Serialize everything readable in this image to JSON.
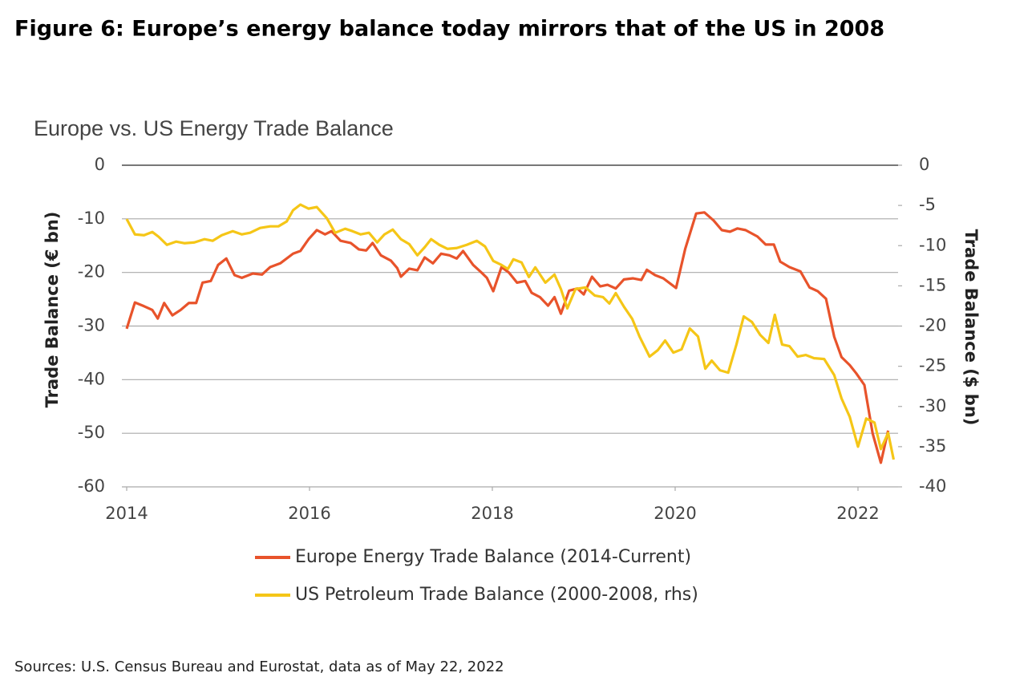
{
  "title": "Figure 6: Europe’s energy balance today mirrors that of the US in 2008",
  "source": "Sources: U.S. Census Bureau and Eurostat, data as of May 22, 2022",
  "chart_data": {
    "type": "line",
    "subtitle": "Europe vs. US Energy Trade Balance",
    "ylabel": "Trade Balance (€ bn)",
    "y2label": "Trade Balance ($ bn)",
    "xlim": [
      2014,
      2022.5
    ],
    "xticks": [
      2014,
      2016,
      2018,
      2020,
      2022
    ],
    "ylim": [
      -60,
      0
    ],
    "yticks": [
      0,
      -10,
      -20,
      -30,
      -40,
      -50,
      -60
    ],
    "y2lim": [
      -40,
      0
    ],
    "y2ticks": [
      0,
      -5,
      -10,
      -15,
      -20,
      -25,
      -30,
      -35,
      -40
    ],
    "grid": true,
    "series": [
      {
        "name": "Europe Energy Trade Balance (2014-Current)",
        "color": "#e8532b",
        "x": [
          2014.0,
          2014.09,
          2014.19,
          2014.28,
          2014.34,
          2014.41,
          2014.5,
          2014.59,
          2014.68,
          2014.76,
          2014.83,
          2014.92,
          2015.0,
          2015.09,
          2015.18,
          2015.26,
          2015.38,
          2015.48,
          2015.57,
          2015.68,
          2015.82,
          2015.9,
          2015.99,
          2016.08,
          2016.17,
          2016.24,
          2016.34,
          2016.45,
          2016.54,
          2016.62,
          2016.69,
          2016.78,
          2016.89,
          2016.96,
          2017.0,
          2017.09,
          2017.18,
          2017.26,
          2017.35,
          2017.44,
          2017.53,
          2017.61,
          2017.68,
          2017.79,
          2017.88,
          2017.94,
          2018.01,
          2018.1,
          2018.18,
          2018.27,
          2018.36,
          2018.43,
          2018.52,
          2018.61,
          2018.68,
          2018.75,
          2018.84,
          2018.93,
          2019.0,
          2019.09,
          2019.18,
          2019.26,
          2019.35,
          2019.44,
          2019.54,
          2019.63,
          2019.69,
          2019.78,
          2019.87,
          2020.01,
          2020.11,
          2020.23,
          2020.32,
          2020.42,
          2020.51,
          2020.6,
          2020.68,
          2020.77,
          2020.9,
          2020.99,
          2021.08,
          2021.15,
          2021.25,
          2021.37,
          2021.47,
          2021.56,
          2021.65,
          2021.74,
          2021.82,
          2021.91,
          2021.98,
          2022.07,
          2022.16,
          2022.25,
          2022.33
        ],
        "values": [
          -30.5,
          -25.6,
          -26.3,
          -27,
          -28.6,
          -25.7,
          -28,
          -27,
          -25.7,
          -25.7,
          -21.9,
          -21.6,
          -18.6,
          -17.4,
          -20.5,
          -21,
          -20.2,
          -20.4,
          -19,
          -18.3,
          -16.5,
          -16,
          -13.8,
          -12.1,
          -12.9,
          -12.3,
          -14.1,
          -14.5,
          -15.7,
          -15.9,
          -14.5,
          -16.8,
          -17.8,
          -19.2,
          -20.8,
          -19.3,
          -19.6,
          -17.2,
          -18.3,
          -16.5,
          -16.8,
          -17.4,
          -16,
          -18.6,
          -20,
          -21,
          -23.5,
          -19,
          -20,
          -21.9,
          -21.6,
          -23.8,
          -24.6,
          -26.2,
          -24.6,
          -27.7,
          -23.4,
          -23,
          -24.1,
          -20.8,
          -22.6,
          -22.3,
          -23,
          -21.3,
          -21.1,
          -21.4,
          -19.5,
          -20.5,
          -21.1,
          -22.9,
          -15.6,
          -9,
          -8.8,
          -10.3,
          -12.1,
          -12.4,
          -11.8,
          -12.1,
          -13.3,
          -14.8,
          -14.8,
          -18,
          -19,
          -19.8,
          -22.8,
          -23.5,
          -24.9,
          -32,
          -35.8,
          -37.3,
          -38.8,
          -41,
          -50,
          -55.5,
          -49.5
        ]
      },
      {
        "name": "US Petroleum Trade Balance (2000-2008, rhs)",
        "color": "#f5c617",
        "axis": "y2",
        "x": [
          2014.0,
          2014.09,
          2014.19,
          2014.28,
          2014.35,
          2014.44,
          2014.54,
          2014.63,
          2014.74,
          2014.85,
          2014.94,
          2015.04,
          2015.16,
          2015.26,
          2015.35,
          2015.46,
          2015.57,
          2015.66,
          2015.75,
          2015.82,
          2015.9,
          2015.99,
          2016.08,
          2016.19,
          2016.28,
          2016.39,
          2016.47,
          2016.56,
          2016.65,
          2016.74,
          2016.82,
          2016.91,
          2017.0,
          2017.09,
          2017.18,
          2017.26,
          2017.33,
          2017.42,
          2017.51,
          2017.61,
          2017.72,
          2017.83,
          2017.92,
          2018.01,
          2018.1,
          2018.17,
          2018.23,
          2018.32,
          2018.4,
          2018.47,
          2018.58,
          2018.68,
          2018.75,
          2018.82,
          2018.91,
          2019.02,
          2019.12,
          2019.21,
          2019.28,
          2019.35,
          2019.44,
          2019.53,
          2019.61,
          2019.72,
          2019.81,
          2019.89,
          2019.98,
          2020.07,
          2020.16,
          2020.25,
          2020.33,
          2020.4,
          2020.49,
          2020.58,
          2020.67,
          2020.75,
          2020.84,
          2020.93,
          2021.02,
          2021.09,
          2021.17,
          2021.25,
          2021.34,
          2021.43,
          2021.52,
          2021.63,
          2021.74,
          2021.82,
          2021.91,
          2022.0,
          2022.09,
          2022.18,
          2022.25,
          2022.33,
          2022.39
        ],
        "values": [
          -6.7,
          -8.6,
          -8.7,
          -8.3,
          -8.9,
          -9.9,
          -9.5,
          -9.7,
          -9.6,
          -9.2,
          -9.4,
          -8.7,
          -8.2,
          -8.6,
          -8.4,
          -7.8,
          -7.6,
          -7.6,
          -7,
          -5.6,
          -4.9,
          -5.4,
          -5.2,
          -6.6,
          -8.4,
          -7.9,
          -8.2,
          -8.6,
          -8.4,
          -9.6,
          -8.6,
          -8,
          -9.2,
          -9.8,
          -11.2,
          -10.2,
          -9.2,
          -9.9,
          -10.4,
          -10.3,
          -9.9,
          -9.4,
          -10.1,
          -11.9,
          -12.4,
          -12.9,
          -11.7,
          -12.1,
          -13.9,
          -12.7,
          -14.6,
          -13.6,
          -15.4,
          -17.8,
          -15.4,
          -15.2,
          -16.2,
          -16.4,
          -17.2,
          -15.9,
          -17.6,
          -19.1,
          -21.3,
          -23.8,
          -23,
          -21.8,
          -23.3,
          -22.9,
          -20.3,
          -21.3,
          -25.3,
          -24.3,
          -25.5,
          -25.8,
          -22.3,
          -18.8,
          -19.5,
          -21.1,
          -22.1,
          -18.6,
          -22.3,
          -22.5,
          -23.8,
          -23.6,
          -24,
          -24.1,
          -26.1,
          -29,
          -31.3,
          -35,
          -31.5,
          -32,
          -35.3,
          -33.3,
          -36.6
        ]
      }
    ]
  }
}
